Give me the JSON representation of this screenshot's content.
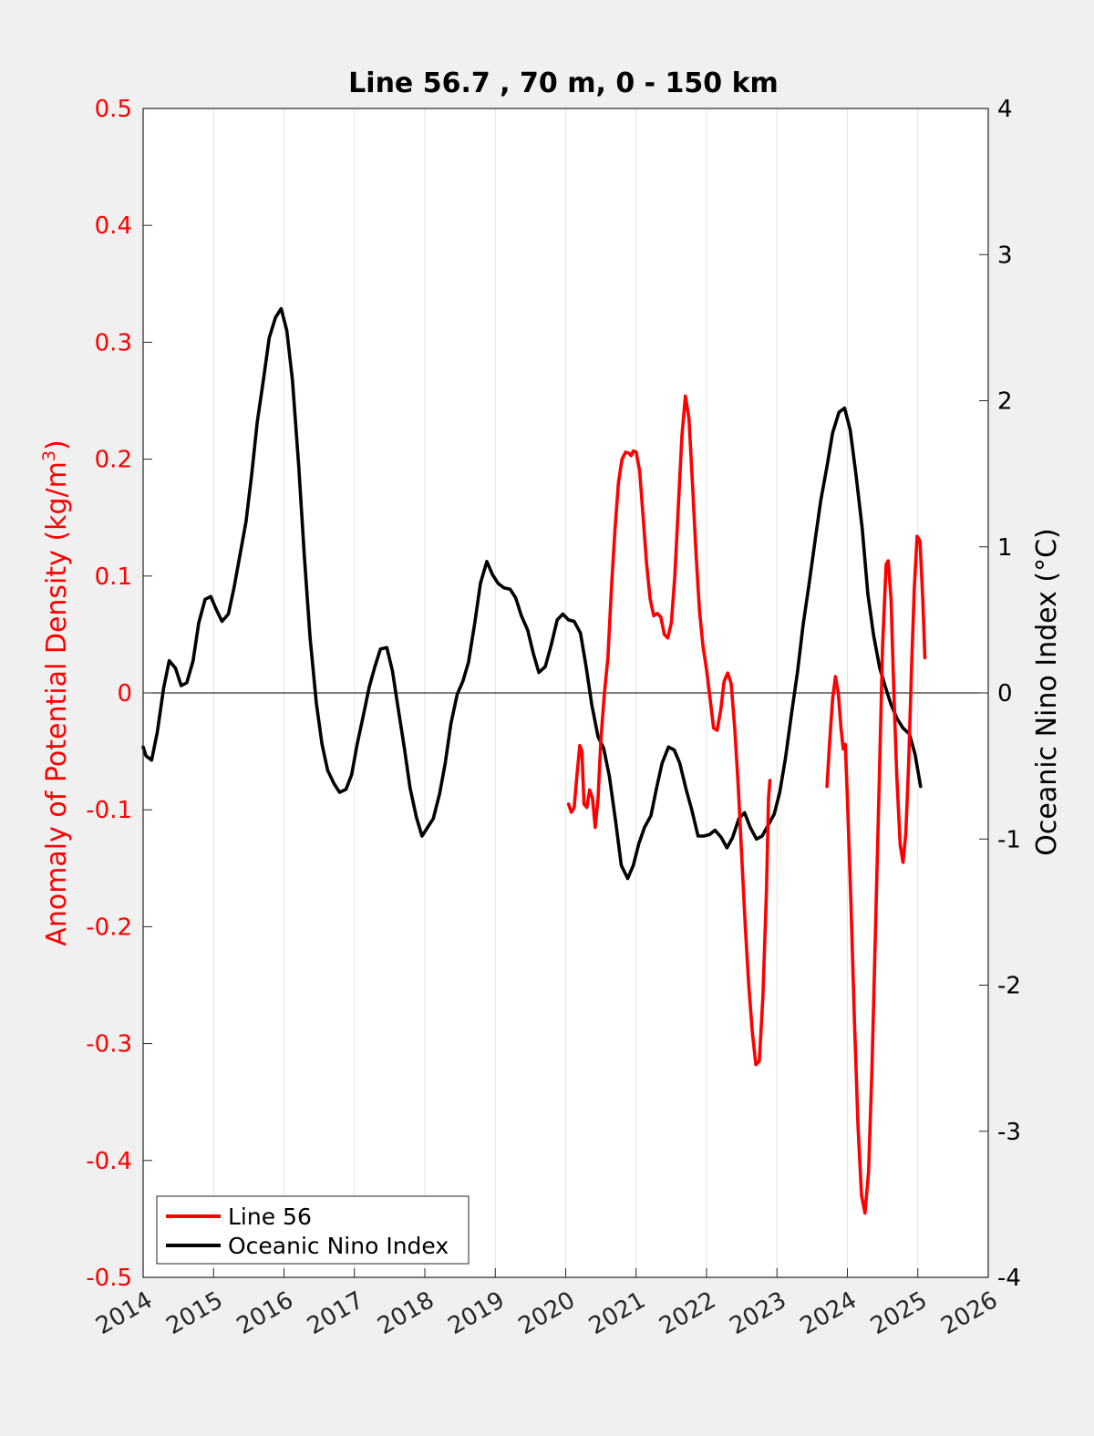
{
  "chart_data": {
    "type": "line",
    "title": "Line 56.7 , 70 m, 0 - 150 km",
    "xlim": [
      2014,
      2026
    ],
    "x_ticks": [
      "2014",
      "2015",
      "2016",
      "2017",
      "2018",
      "2019",
      "2020",
      "2021",
      "2022",
      "2023",
      "2024",
      "2025",
      "2026"
    ],
    "y_left": {
      "label_main": "Anomaly of Potential Density (kg/m",
      "label_sup": "3",
      "label_close": ")",
      "lim": [
        -0.5,
        0.5
      ],
      "ticks": [
        "-0.5",
        "-0.4",
        "-0.3",
        "-0.2",
        "-0.1",
        "0",
        "0.1",
        "0.2",
        "0.3",
        "0.4",
        "0.5"
      ],
      "tick_values": [
        -0.5,
        -0.4,
        -0.3,
        -0.2,
        -0.1,
        0,
        0.1,
        0.2,
        0.3,
        0.4,
        0.5
      ],
      "color": "#ff0000"
    },
    "y_right": {
      "label": "Oceanic Nino Index (°C)",
      "lim": [
        -4,
        4
      ],
      "ticks": [
        "-4",
        "-3",
        "-2",
        "-1",
        "0",
        "1",
        "2",
        "3",
        "4"
      ],
      "tick_values": [
        -4,
        -3,
        -2,
        -1,
        0,
        1,
        2,
        3,
        4
      ],
      "color": "#000000"
    },
    "grid": "vertical",
    "legend_position": "bottom-left",
    "series": [
      {
        "name": "Line 56",
        "axis": "left",
        "color": "#ff0000",
        "segments": [
          [
            [
              2020.04,
              -0.095
            ],
            [
              2020.08,
              -0.102
            ],
            [
              2020.12,
              -0.098
            ],
            [
              2020.16,
              -0.07
            ],
            [
              2020.2,
              -0.045
            ],
            [
              2020.23,
              -0.05
            ],
            [
              2020.26,
              -0.095
            ],
            [
              2020.3,
              -0.098
            ],
            [
              2020.34,
              -0.083
            ],
            [
              2020.38,
              -0.09
            ],
            [
              2020.42,
              -0.115
            ],
            [
              2020.46,
              -0.09
            ],
            [
              2020.5,
              -0.04
            ],
            [
              2020.55,
              0.0
            ],
            [
              2020.6,
              0.03
            ],
            [
              2020.65,
              0.09
            ],
            [
              2020.7,
              0.14
            ],
            [
              2020.75,
              0.18
            ],
            [
              2020.8,
              0.2
            ],
            [
              2020.85,
              0.206
            ],
            [
              2020.9,
              0.205
            ],
            [
              2020.93,
              0.203
            ],
            [
              2020.96,
              0.207
            ],
            [
              2021.0,
              0.206
            ],
            [
              2021.05,
              0.19
            ],
            [
              2021.1,
              0.15
            ],
            [
              2021.15,
              0.11
            ],
            [
              2021.2,
              0.08
            ],
            [
              2021.25,
              0.066
            ],
            [
              2021.3,
              0.068
            ],
            [
              2021.35,
              0.065
            ],
            [
              2021.4,
              0.05
            ],
            [
              2021.45,
              0.047
            ],
            [
              2021.5,
              0.06
            ],
            [
              2021.55,
              0.1
            ],
            [
              2021.6,
              0.16
            ],
            [
              2021.65,
              0.22
            ],
            [
              2021.7,
              0.254
            ],
            [
              2021.75,
              0.235
            ],
            [
              2021.8,
              0.18
            ],
            [
              2021.85,
              0.12
            ],
            [
              2021.9,
              0.07
            ],
            [
              2021.95,
              0.04
            ],
            [
              2022.0,
              0.02
            ],
            [
              2022.05,
              -0.005
            ],
            [
              2022.1,
              -0.03
            ],
            [
              2022.15,
              -0.032
            ],
            [
              2022.2,
              -0.015
            ],
            [
              2022.25,
              0.01
            ],
            [
              2022.3,
              0.017
            ],
            [
              2022.35,
              0.008
            ],
            [
              2022.4,
              -0.03
            ],
            [
              2022.45,
              -0.08
            ],
            [
              2022.5,
              -0.14
            ],
            [
              2022.55,
              -0.2
            ],
            [
              2022.6,
              -0.25
            ],
            [
              2022.65,
              -0.29
            ],
            [
              2022.7,
              -0.318
            ],
            [
              2022.75,
              -0.315
            ],
            [
              2022.8,
              -0.26
            ],
            [
              2022.85,
              -0.17
            ],
            [
              2022.88,
              -0.09
            ],
            [
              2022.9,
              -0.075
            ]
          ],
          [
            [
              2023.71,
              -0.08
            ],
            [
              2023.75,
              -0.04
            ],
            [
              2023.79,
              -0.005
            ],
            [
              2023.83,
              0.014
            ],
            [
              2023.87,
              0.0
            ],
            [
              2023.91,
              -0.03
            ],
            [
              2023.94,
              -0.048
            ],
            [
              2023.97,
              -0.044
            ],
            [
              2024.0,
              -0.09
            ],
            [
              2024.05,
              -0.18
            ],
            [
              2024.1,
              -0.28
            ],
            [
              2024.15,
              -0.37
            ],
            [
              2024.2,
              -0.43
            ],
            [
              2024.25,
              -0.445
            ],
            [
              2024.3,
              -0.41
            ],
            [
              2024.35,
              -0.32
            ],
            [
              2024.4,
              -0.2
            ],
            [
              2024.45,
              -0.08
            ],
            [
              2024.5,
              0.04
            ],
            [
              2024.55,
              0.11
            ],
            [
              2024.58,
              0.113
            ],
            [
              2024.62,
              0.08
            ],
            [
              2024.66,
              0.0
            ],
            [
              2024.7,
              -0.07
            ],
            [
              2024.75,
              -0.13
            ],
            [
              2024.79,
              -0.145
            ],
            [
              2024.83,
              -0.12
            ],
            [
              2024.87,
              -0.06
            ],
            [
              2024.91,
              0.02
            ],
            [
              2024.95,
              0.09
            ],
            [
              2024.99,
              0.134
            ],
            [
              2025.03,
              0.13
            ],
            [
              2025.07,
              0.08
            ],
            [
              2025.1,
              0.03
            ]
          ]
        ]
      },
      {
        "name": "Oceanic Nino Index",
        "axis": "right",
        "color": "#000000",
        "segments": [
          [
            [
              2014.0,
              -0.37
            ],
            [
              2014.04,
              -0.43
            ],
            [
              2014.12,
              -0.46
            ],
            [
              2014.2,
              -0.27
            ],
            [
              2014.29,
              0.03
            ],
            [
              2014.37,
              0.22
            ],
            [
              2014.46,
              0.17
            ],
            [
              2014.54,
              0.05
            ],
            [
              2014.62,
              0.07
            ],
            [
              2014.71,
              0.22
            ],
            [
              2014.79,
              0.48
            ],
            [
              2014.88,
              0.64
            ],
            [
              2014.96,
              0.66
            ],
            [
              2015.04,
              0.57
            ],
            [
              2015.12,
              0.49
            ],
            [
              2015.21,
              0.54
            ],
            [
              2015.29,
              0.72
            ],
            [
              2015.37,
              0.93
            ],
            [
              2015.46,
              1.17
            ],
            [
              2015.54,
              1.49
            ],
            [
              2015.62,
              1.85
            ],
            [
              2015.71,
              2.15
            ],
            [
              2015.79,
              2.43
            ],
            [
              2015.88,
              2.57
            ],
            [
              2015.96,
              2.63
            ],
            [
              2016.04,
              2.48
            ],
            [
              2016.12,
              2.14
            ],
            [
              2016.21,
              1.55
            ],
            [
              2016.29,
              0.93
            ],
            [
              2016.37,
              0.38
            ],
            [
              2016.46,
              -0.07
            ],
            [
              2016.54,
              -0.35
            ],
            [
              2016.62,
              -0.53
            ],
            [
              2016.71,
              -0.62
            ],
            [
              2016.79,
              -0.68
            ],
            [
              2016.88,
              -0.66
            ],
            [
              2016.96,
              -0.56
            ],
            [
              2017.04,
              -0.35
            ],
            [
              2017.12,
              -0.17
            ],
            [
              2017.21,
              0.04
            ],
            [
              2017.29,
              0.18
            ],
            [
              2017.37,
              0.3
            ],
            [
              2017.46,
              0.31
            ],
            [
              2017.54,
              0.15
            ],
            [
              2017.62,
              -0.1
            ],
            [
              2017.71,
              -0.38
            ],
            [
              2017.79,
              -0.65
            ],
            [
              2017.88,
              -0.85
            ],
            [
              2017.96,
              -0.98
            ],
            [
              2018.04,
              -0.92
            ],
            [
              2018.12,
              -0.86
            ],
            [
              2018.21,
              -0.69
            ],
            [
              2018.29,
              -0.48
            ],
            [
              2018.37,
              -0.21
            ],
            [
              2018.46,
              -0.01
            ],
            [
              2018.54,
              0.08
            ],
            [
              2018.62,
              0.21
            ],
            [
              2018.71,
              0.48
            ],
            [
              2018.79,
              0.75
            ],
            [
              2018.88,
              0.9
            ],
            [
              2018.96,
              0.81
            ],
            [
              2019.04,
              0.75
            ],
            [
              2019.12,
              0.72
            ],
            [
              2019.21,
              0.71
            ],
            [
              2019.29,
              0.65
            ],
            [
              2019.37,
              0.53
            ],
            [
              2019.46,
              0.43
            ],
            [
              2019.54,
              0.27
            ],
            [
              2019.62,
              0.14
            ],
            [
              2019.71,
              0.18
            ],
            [
              2019.79,
              0.32
            ],
            [
              2019.88,
              0.5
            ],
            [
              2019.96,
              0.54
            ],
            [
              2020.04,
              0.5
            ],
            [
              2020.12,
              0.49
            ],
            [
              2020.21,
              0.41
            ],
            [
              2020.29,
              0.18
            ],
            [
              2020.37,
              -0.08
            ],
            [
              2020.46,
              -0.3
            ],
            [
              2020.54,
              -0.38
            ],
            [
              2020.62,
              -0.57
            ],
            [
              2020.71,
              -0.88
            ],
            [
              2020.79,
              -1.18
            ],
            [
              2020.88,
              -1.27
            ],
            [
              2020.96,
              -1.18
            ],
            [
              2021.04,
              -1.03
            ],
            [
              2021.12,
              -0.92
            ],
            [
              2021.21,
              -0.84
            ],
            [
              2021.29,
              -0.65
            ],
            [
              2021.37,
              -0.48
            ],
            [
              2021.46,
              -0.37
            ],
            [
              2021.54,
              -0.39
            ],
            [
              2021.62,
              -0.48
            ],
            [
              2021.71,
              -0.66
            ],
            [
              2021.79,
              -0.8
            ],
            [
              2021.88,
              -0.98
            ],
            [
              2021.96,
              -0.98
            ],
            [
              2022.04,
              -0.97
            ],
            [
              2022.12,
              -0.94
            ],
            [
              2022.21,
              -0.99
            ],
            [
              2022.29,
              -1.06
            ],
            [
              2022.37,
              -0.99
            ],
            [
              2022.46,
              -0.86
            ],
            [
              2022.54,
              -0.82
            ],
            [
              2022.62,
              -0.92
            ],
            [
              2022.71,
              -1.0
            ],
            [
              2022.79,
              -0.98
            ],
            [
              2022.88,
              -0.9
            ],
            [
              2022.96,
              -0.83
            ],
            [
              2023.04,
              -0.68
            ],
            [
              2023.12,
              -0.45
            ],
            [
              2023.21,
              -0.13
            ],
            [
              2023.29,
              0.14
            ],
            [
              2023.37,
              0.46
            ],
            [
              2023.46,
              0.76
            ],
            [
              2023.54,
              1.04
            ],
            [
              2023.62,
              1.31
            ],
            [
              2023.71,
              1.55
            ],
            [
              2023.79,
              1.78
            ],
            [
              2023.88,
              1.92
            ],
            [
              2023.96,
              1.95
            ],
            [
              2024.04,
              1.8
            ],
            [
              2024.12,
              1.5
            ],
            [
              2024.21,
              1.13
            ],
            [
              2024.29,
              0.68
            ],
            [
              2024.37,
              0.4
            ],
            [
              2024.46,
              0.17
            ],
            [
              2024.54,
              0.04
            ],
            [
              2024.62,
              -0.08
            ],
            [
              2024.71,
              -0.18
            ],
            [
              2024.79,
              -0.24
            ],
            [
              2024.88,
              -0.28
            ],
            [
              2024.96,
              -0.42
            ],
            [
              2025.04,
              -0.64
            ]
          ]
        ]
      }
    ]
  }
}
